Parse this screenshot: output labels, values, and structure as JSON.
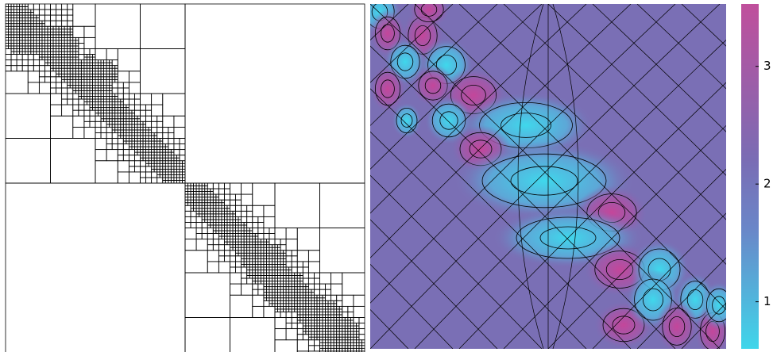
{
  "chart_data": {
    "type": "heatmap",
    "colorbar": {
      "lim": [
        0.6,
        3.53
      ],
      "ticks": [
        1,
        2,
        3
      ]
    }
  }
}
